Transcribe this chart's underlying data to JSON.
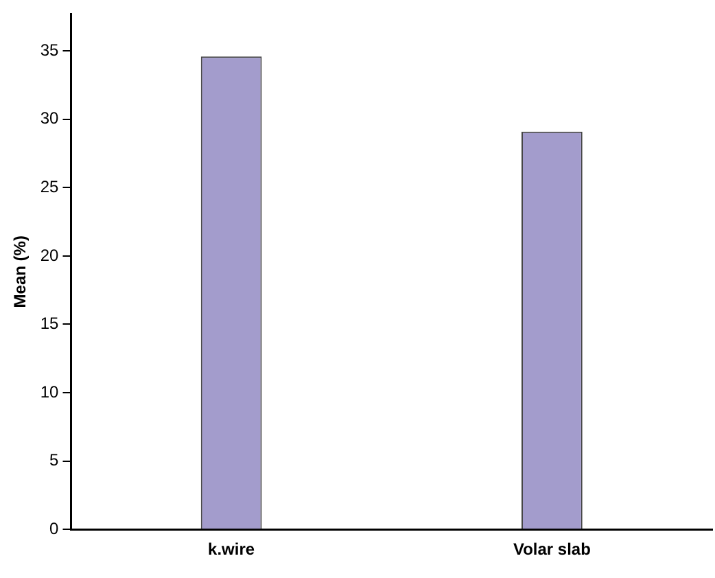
{
  "chart_data": {
    "type": "bar",
    "ylabel": "Mean (%)",
    "categories": [
      "k.wire",
      "Volar slab"
    ],
    "values": [
      34.6,
      29.1
    ],
    "color": "#a39ccc",
    "ylim": [
      0,
      37.7
    ],
    "yticks": [
      0,
      5,
      10,
      15,
      20,
      25,
      30,
      35
    ],
    "grid": false
  }
}
